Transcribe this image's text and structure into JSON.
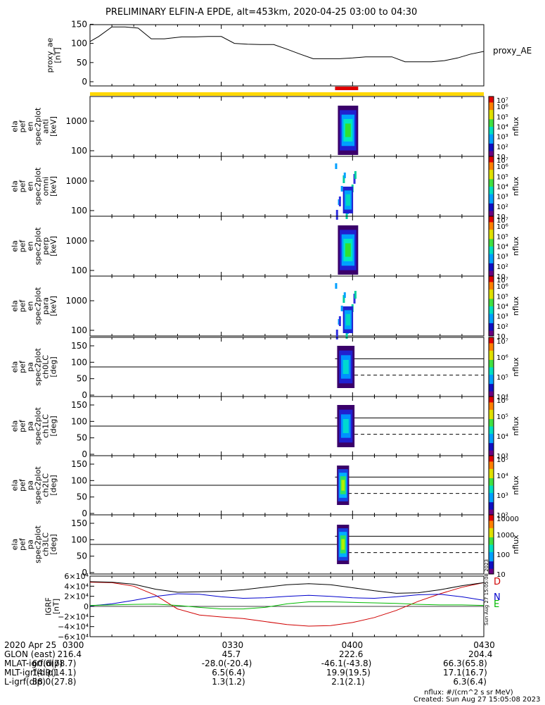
{
  "title": "PRELIMINARY ELFIN-A EPDE, alt=453km, 2020-04-25 03:00 to 04:30",
  "footer": {
    "units": "nflux: #/(cm^2 s sr MeV)",
    "created": "Created: Sun Aug 27 15:05:08 2023",
    "side_stamp": "Sun Aug 27 15:05:08 2023"
  },
  "ephemeris": {
    "rows": [
      {
        "label": "2020 Apr 25",
        "values": [
          "0300",
          "0330",
          "0400",
          "0430"
        ]
      },
      {
        "label": "GLON (east)",
        "values": [
          "216.4",
          "45.7",
          "222.6",
          "204.4"
        ]
      },
      {
        "label": "MLAT-igrf(dip)",
        "values": [
          "60.6(78.7)",
          "-28.0(-20.4)",
          "-46.1(-43.8)",
          "66.3(65.8)"
        ]
      },
      {
        "label": "MLT-igrf(dip)",
        "values": [
          "14.9(14.1)",
          "6.5(6.4)",
          "19.9(19.5)",
          "17.1(16.7)"
        ]
      },
      {
        "label": "L-igrf(dip)",
        "values": [
          "38.0(27.8)",
          "1.3(1.2)",
          "2.1(2.1)",
          "6.3(6.4)"
        ]
      }
    ]
  },
  "colors": {
    "axis": "#000000",
    "orbit_bar": "#ffd700",
    "science_zone_bar": "#e00000",
    "igrf_D": "#d00000",
    "igrf_N": "#0000cc",
    "igrf_E": "#00bb00",
    "igrf_total": "#000000"
  },
  "chart_data": [
    {
      "type": "line",
      "panel": "proxy_ae",
      "ylabel": [
        "proxy_ae",
        "[nT]"
      ],
      "legend": "proxy_AE",
      "xlim": [
        "03:00",
        "04:30"
      ],
      "ylim": [
        0,
        160
      ],
      "yticks": [
        0,
        50,
        100,
        150
      ],
      "ytick_labels": [
        "0",
        "50",
        "100",
        "150"
      ],
      "x": [
        "03:00",
        "03:02",
        "03:05",
        "03:08",
        "03:11",
        "03:14",
        "03:17",
        "03:21",
        "03:24",
        "03:27",
        "03:30",
        "03:33",
        "03:36",
        "03:39",
        "03:42",
        "03:45",
        "03:48",
        "03:51",
        "03:54",
        "03:57",
        "04:00",
        "04:03",
        "04:06",
        "04:09",
        "04:12",
        "04:15",
        "04:18",
        "04:21",
        "04:24",
        "04:27",
        "04:30"
      ],
      "y": [
        105,
        118,
        143,
        143,
        140,
        112,
        112,
        117,
        117,
        118,
        118,
        100,
        98,
        97,
        97,
        85,
        72,
        60,
        60,
        60,
        62,
        65,
        65,
        65,
        52,
        52,
        52,
        55,
        62,
        72,
        79
      ]
    },
    {
      "type": "heatmap",
      "panel": "ela_pef_en_spec2plot_anti",
      "ylabel": [
        "ela",
        "pef",
        "en",
        "spec2plot",
        "anti",
        "[keV]"
      ],
      "yscale": "log",
      "ytick_labels": [
        "100",
        "1000"
      ],
      "colorbar": {
        "label": "nflux",
        "tick_labels": [
          "10",
          "10²",
          "10³",
          "10⁴",
          "10⁵",
          "10⁶",
          "10⁷"
        ],
        "scale": "log"
      },
      "data_interval": [
        "03:56",
        "04:00"
      ]
    },
    {
      "type": "heatmap",
      "panel": "ela_pef_en_spec2plot_omni",
      "ylabel": [
        "ela",
        "pef",
        "en",
        "spec2plot",
        "omni",
        "[keV]"
      ],
      "yscale": "log",
      "ytick_labels": [
        "100",
        "1000"
      ],
      "colorbar": {
        "label": "nflux",
        "tick_labels": [
          "10",
          "10²",
          "10³",
          "10⁴",
          "10⁵",
          "10⁶",
          "10⁷"
        ],
        "scale": "log"
      },
      "data_interval": [
        "03:56",
        "04:00"
      ]
    },
    {
      "type": "heatmap",
      "panel": "ela_pef_en_spec2plot_perp",
      "ylabel": [
        "ela",
        "pef",
        "en",
        "spec2plot",
        "perp",
        "[keV]"
      ],
      "yscale": "log",
      "ytick_labels": [
        "100",
        "1000"
      ],
      "colorbar": {
        "label": "nflux",
        "tick_labels": [
          "10",
          "10²",
          "10³",
          "10⁴",
          "10⁵",
          "10⁶",
          "10⁷"
        ],
        "scale": "log"
      },
      "data_interval": [
        "03:56",
        "04:00"
      ]
    },
    {
      "type": "heatmap",
      "panel": "ela_pef_en_spec2plot_para",
      "ylabel": [
        "ela",
        "pef",
        "en",
        "spec2plot",
        "para",
        "[keV]"
      ],
      "yscale": "log",
      "ytick_labels": [
        "100",
        "1000"
      ],
      "colorbar": {
        "label": "nflux",
        "tick_labels": [
          "10",
          "10²",
          "10³",
          "10⁴",
          "10⁵",
          "10⁶",
          "10⁷"
        ],
        "scale": "log"
      },
      "data_interval": [
        "03:56",
        "04:00"
      ]
    },
    {
      "type": "heatmap",
      "panel": "ela_pef_pa_spec2plot_ch0LC",
      "ylabel": [
        "ela",
        "pef",
        "pa",
        "spec2plot",
        "ch0LC",
        "[deg]"
      ],
      "ylim": [
        0,
        180
      ],
      "yticks": [
        0,
        50,
        100,
        150
      ],
      "ytick_labels": [
        "0",
        "50",
        "100",
        "150"
      ],
      "reference_line": 90,
      "loss_cone_lines": {
        "solid": 115,
        "dashed": 65
      },
      "colorbar": {
        "label": "nflux",
        "tick_labels": [
          "10⁴",
          "10⁵",
          "10⁶",
          "10⁷"
        ],
        "scale": "log"
      },
      "data_interval": [
        "03:56",
        "03:59"
      ]
    },
    {
      "type": "heatmap",
      "panel": "ela_pef_pa_spec2plot_ch1LC",
      "ylabel": [
        "ela",
        "pef",
        "pa",
        "spec2plot",
        "ch1LC",
        "[deg]"
      ],
      "ylim": [
        0,
        180
      ],
      "yticks": [
        0,
        50,
        100,
        150
      ],
      "ytick_labels": [
        "0",
        "50",
        "100",
        "150"
      ],
      "reference_line": 90,
      "loss_cone_lines": {
        "solid": 115,
        "dashed": 65
      },
      "colorbar": {
        "label": "nflux",
        "tick_labels": [
          "10³",
          "10⁴",
          "10⁵",
          "10⁶"
        ],
        "scale": "log"
      },
      "data_interval": [
        "03:56",
        "03:59"
      ]
    },
    {
      "type": "heatmap",
      "panel": "ela_pef_pa_spec2plot_ch2LC",
      "ylabel": [
        "ela",
        "pef",
        "pa",
        "spec2plot",
        "ch2LC",
        "[deg]"
      ],
      "ylim": [
        0,
        180
      ],
      "yticks": [
        0,
        50,
        100,
        150
      ],
      "ytick_labels": [
        "0",
        "50",
        "100",
        "150"
      ],
      "reference_line": 90,
      "loss_cone_lines": {
        "solid": 115,
        "dashed": 65
      },
      "colorbar": {
        "label": "nflux",
        "tick_labels": [
          "10²",
          "10³",
          "10⁴",
          "10⁵"
        ],
        "scale": "log"
      },
      "data_interval": [
        "03:56",
        "03:59"
      ]
    },
    {
      "type": "heatmap",
      "panel": "ela_pef_pa_spec2plot_ch3LC",
      "ylabel": [
        "ela",
        "pef",
        "pa",
        "spec2plot",
        "ch3LC",
        "[deg]"
      ],
      "ylim": [
        0,
        180
      ],
      "yticks": [
        0,
        50,
        100,
        150
      ],
      "ytick_labels": [
        "0",
        "50",
        "100",
        "150"
      ],
      "reference_line": 90,
      "loss_cone_lines": {
        "solid": 115,
        "dashed": 65
      },
      "colorbar": {
        "label": "nflux",
        "tick_labels": [
          "10",
          "100",
          "1000",
          "10000"
        ],
        "scale": "log"
      },
      "data_interval": [
        "03:56",
        "03:59"
      ]
    },
    {
      "type": "line",
      "panel": "IGRF",
      "ylabel": [
        "IGRF",
        "[nT]"
      ],
      "ylim": [
        -60000,
        60000
      ],
      "yticks": [
        -60000,
        -40000,
        -20000,
        0,
        20000,
        40000,
        60000
      ],
      "ytick_labels": [
        "−6×10⁴",
        "−4×10⁴",
        "−2×10⁴",
        "0",
        "2×10⁴",
        "4×10⁴",
        "6×10⁴"
      ],
      "x": [
        "03:00",
        "03:05",
        "03:10",
        "03:15",
        "03:20",
        "03:25",
        "03:30",
        "03:35",
        "03:40",
        "03:45",
        "03:50",
        "03:55",
        "04:00",
        "04:05",
        "04:10",
        "04:15",
        "04:20",
        "04:25",
        "04:30"
      ],
      "series": [
        {
          "name": "D",
          "color_key": "igrf_D",
          "values": [
            48000,
            47000,
            40000,
            22000,
            -5000,
            -17000,
            -21000,
            -24000,
            -30000,
            -36000,
            -39000,
            -38000,
            -32000,
            -22000,
            -8000,
            10000,
            25000,
            38000,
            47000
          ]
        },
        {
          "name": "N",
          "color_key": "igrf_N",
          "values": [
            1000,
            5000,
            12000,
            20000,
            25000,
            24000,
            19000,
            16000,
            17000,
            20000,
            22000,
            20000,
            17000,
            16000,
            19000,
            23000,
            24000,
            19000,
            12000
          ]
        },
        {
          "name": "E",
          "color_key": "igrf_E",
          "values": [
            2000,
            3000,
            4000,
            4500,
            2000,
            -2000,
            -5000,
            -5000,
            -2000,
            5000,
            9000,
            9000,
            8000,
            7000,
            6000,
            4000,
            3000,
            3000,
            2000
          ]
        },
        {
          "name": "",
          "color_key": "igrf_total",
          "values": [
            49000,
            48000,
            44000,
            34000,
            28000,
            29000,
            30000,
            33000,
            38000,
            43000,
            45000,
            43000,
            37000,
            31000,
            26000,
            27000,
            33000,
            41000,
            47000
          ]
        }
      ]
    }
  ]
}
